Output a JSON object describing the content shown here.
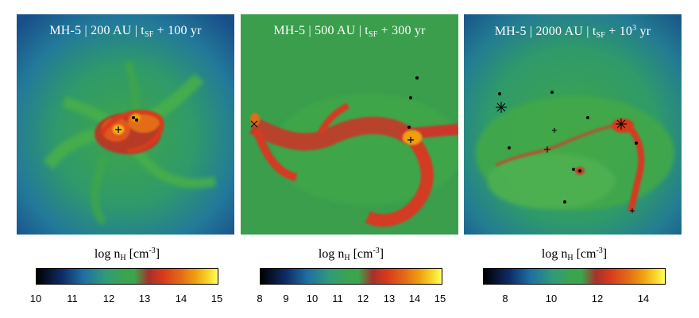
{
  "panels": [
    {
      "title_prefix": "MH-5  |  200 AU  |  t",
      "title_sub": "SF",
      "title_suffix": " + 100 yr",
      "title_sup": "",
      "title_tail": "",
      "colorbar": {
        "label": "log n",
        "label_sub": "H",
        "label_unit": " [cm",
        "label_sup": "-3",
        "label_end": "]",
        "ticks": [
          "10",
          "11",
          "12",
          "13",
          "14",
          "15"
        ]
      }
    },
    {
      "title_prefix": "MH-5  |  500 AU  |  t",
      "title_sub": "SF",
      "title_suffix": " + 300 yr",
      "title_sup": "",
      "title_tail": "",
      "colorbar": {
        "label": "log n",
        "label_sub": "H",
        "label_unit": " [cm",
        "label_sup": "-3",
        "label_end": "]",
        "ticks": [
          "8",
          "9",
          "10",
          "11",
          "12",
          "13",
          "14",
          "15"
        ]
      }
    },
    {
      "title_prefix": "MH-5  |  2000 AU  |  t",
      "title_sub": "SF",
      "title_suffix": " + 10",
      "title_sup": "3",
      "title_tail": " yr",
      "colorbar": {
        "label": "log n",
        "label_sub": "H",
        "label_unit": " [cm",
        "label_sup": "-3",
        "label_end": "]",
        "ticks": [
          "8",
          "10",
          "12",
          "14"
        ]
      }
    }
  ],
  "colors": {
    "background_green": "#3a9e4c",
    "dense_red": "#d83b1c",
    "peak_orange": "#f0a011",
    "outer_blue": "#1f5d8f"
  }
}
